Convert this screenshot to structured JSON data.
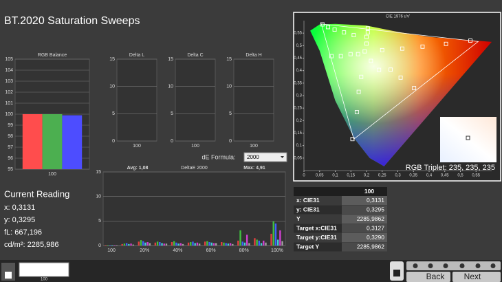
{
  "title": "BT.2020 Saturation Sweeps",
  "current_reading": {
    "heading": "Current Reading",
    "x": "x: 0,3131",
    "y": "y: 0,3295",
    "fl": "fL: 667,196",
    "cdm2": "cd/m²: 2285,986"
  },
  "de_formula": {
    "label": "dE Formula:",
    "value": "2000"
  },
  "rgb_triplet": "RGB Triplet: 235, 235, 235",
  "table": {
    "column": "100",
    "rows": [
      [
        "x: CIE31",
        "0,3131"
      ],
      [
        "y: CIE31",
        "0,3295"
      ],
      [
        "Y",
        "2285,9862"
      ],
      [
        "Target x:CIE31",
        "0,3127"
      ],
      [
        "Target y:CIE31",
        "0,3290"
      ],
      [
        "Target Y",
        "2285,9862"
      ]
    ]
  },
  "thumbnail_label": "100",
  "buttons": [
    "Back",
    "Next"
  ],
  "chart_data": [
    {
      "type": "bar",
      "title": "RGB Balance",
      "categories": [
        "100"
      ],
      "series": [
        {
          "color": "#ff4d4d",
          "values": [
            100
          ]
        },
        {
          "color": "#4caf50",
          "values": [
            100
          ]
        },
        {
          "color": "#4d4dff",
          "values": [
            99.9
          ]
        }
      ],
      "ylim": [
        95,
        105
      ],
      "yticks": [
        95,
        96,
        97,
        98,
        99,
        100,
        101,
        102,
        103,
        104,
        105
      ],
      "grid": true
    },
    {
      "type": "bar",
      "title": "Delta L",
      "categories": [
        "100"
      ],
      "ylim": [
        0,
        15
      ],
      "yticks": [
        0,
        5,
        10,
        15
      ],
      "grid": true
    },
    {
      "type": "bar",
      "title": "Delta C",
      "categories": [
        "100"
      ],
      "ylim": [
        0,
        15
      ],
      "yticks": [
        0,
        5,
        10,
        15
      ],
      "grid": true
    },
    {
      "type": "bar",
      "title": "Delta H",
      "categories": [
        "100"
      ],
      "ylim": [
        0,
        15
      ],
      "yticks": [
        0,
        5,
        10,
        15
      ],
      "grid": true
    },
    {
      "type": "bar",
      "title": "DeltaE 2000",
      "annotations": [
        "Avg: 1,08",
        "Max: 4,91"
      ],
      "categories": [
        "100",
        null,
        "20%",
        null,
        "40%",
        null,
        "60%",
        null,
        "80%",
        null,
        "100%"
      ],
      "series": [
        {
          "color": "#e04040",
          "values": [
            0.1,
            0.3,
            0.8,
            0.6,
            0.7,
            0.6,
            0.8,
            0.7,
            1.0,
            1.5,
            2.4
          ]
        },
        {
          "color": "#40c040",
          "values": [
            0.1,
            0.4,
            1.1,
            0.8,
            0.9,
            0.7,
            0.9,
            0.6,
            3.1,
            1.2,
            4.91
          ]
        },
        {
          "color": "#4060ff",
          "values": [
            0.1,
            0.5,
            0.9,
            0.7,
            0.6,
            0.8,
            0.7,
            0.5,
            0.8,
            1.0,
            4.5
          ]
        },
        {
          "color": "#40d0d0",
          "values": [
            0.1,
            0.3,
            0.6,
            0.5,
            0.4,
            0.5,
            0.6,
            0.4,
            0.6,
            0.5,
            1.2
          ]
        },
        {
          "color": "#d040d0",
          "values": [
            0.1,
            0.4,
            0.7,
            0.4,
            0.5,
            0.6,
            0.5,
            0.5,
            2.2,
            1.0,
            3.1
          ]
        },
        {
          "color": "#a0a0a0",
          "values": [
            0.1,
            0.2,
            0.5,
            0.4,
            0.3,
            0.4,
            0.5,
            0.3,
            0.5,
            0.6,
            0.9
          ]
        }
      ],
      "ylim": [
        0,
        15
      ],
      "yticks": [
        0,
        5,
        10,
        15
      ],
      "grid": true
    },
    {
      "type": "scatter",
      "title": "CIE 1976 u'v'",
      "color": "#ffffff",
      "x": [
        0.059,
        0.077,
        0.098,
        0.128,
        0.159,
        0.204,
        0.204,
        0.2,
        0.2,
        0.088,
        0.118,
        0.149,
        0.173,
        0.194,
        0.25,
        0.314,
        0.379,
        0.454,
        0.532,
        0.214,
        0.24,
        0.277,
        0.309,
        0.352,
        0.183,
        0.175,
        0.169,
        0.155
      ],
      "values": [
        0.585,
        0.574,
        0.564,
        0.553,
        0.542,
        0.569,
        0.553,
        0.535,
        0.508,
        0.458,
        0.458,
        0.466,
        0.466,
        0.477,
        0.482,
        0.488,
        0.496,
        0.507,
        0.52,
        0.439,
        0.403,
        0.404,
        0.372,
        0.33,
        0.375,
        0.315,
        0.234,
        0.126
      ],
      "xlim": [
        0,
        0.6
      ],
      "xticks": [
        0,
        {
          "value": 0.05,
          "label": "0,05"
        },
        {
          "value": 0.1,
          "label": "0,1"
        },
        {
          "value": 0.15,
          "label": "0,15"
        },
        {
          "value": 0.2,
          "label": "0,2"
        },
        {
          "value": 0.25,
          "label": "0,25"
        },
        {
          "value": 0.3,
          "label": "0,3"
        },
        {
          "value": 0.35,
          "label": "0,35"
        },
        {
          "value": 0.4,
          "label": "0,4"
        },
        {
          "value": 0.45,
          "label": "0,45"
        },
        {
          "value": 0.5,
          "label": "0,5"
        },
        {
          "value": 0.55,
          "label": "0,55"
        }
      ],
      "ylim": [
        0,
        0.6
      ],
      "yticks": [
        {
          "value": 0.05,
          "label": "0,05"
        },
        {
          "value": 0.1,
          "label": "0,1"
        },
        {
          "value": 0.15,
          "label": "0,15"
        },
        {
          "value": 0.2,
          "label": "0,2"
        },
        {
          "value": 0.25,
          "label": "0,25"
        },
        {
          "value": 0.3,
          "label": "0,3"
        },
        {
          "value": 0.35,
          "label": "0,35"
        },
        {
          "value": 0.4,
          "label": "0,4"
        },
        {
          "value": 0.45,
          "label": "0,45"
        },
        {
          "value": 0.5,
          "label": "0,5"
        },
        {
          "value": 0.55,
          "label": "0,55"
        }
      ],
      "grid": false
    }
  ]
}
